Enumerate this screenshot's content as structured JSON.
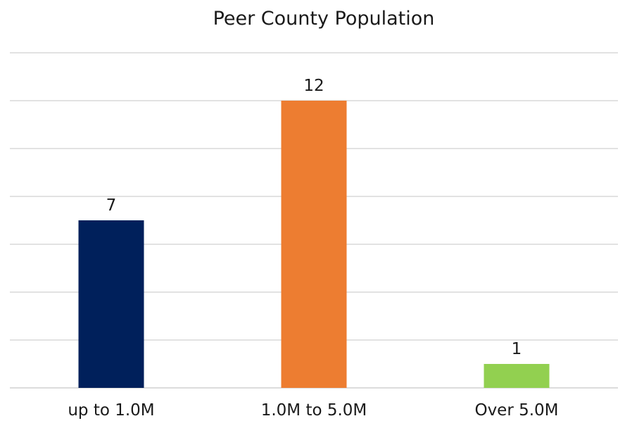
{
  "chart_data": {
    "type": "bar",
    "title": "Peer County Population",
    "xlabel": "",
    "ylabel": "",
    "categories": [
      "up to 1.0M",
      "1.0M to 5.0M",
      "Over 5.0M"
    ],
    "values": [
      7,
      12,
      1
    ],
    "data_labels": [
      "7",
      "12",
      "1"
    ],
    "bar_colors": [
      "#00205b",
      "#ed7d31",
      "#92d050"
    ],
    "ylim": [
      0,
      14
    ],
    "ytick_step": 2,
    "show_y_tick_labels": false,
    "grid": true,
    "legend": "none"
  }
}
